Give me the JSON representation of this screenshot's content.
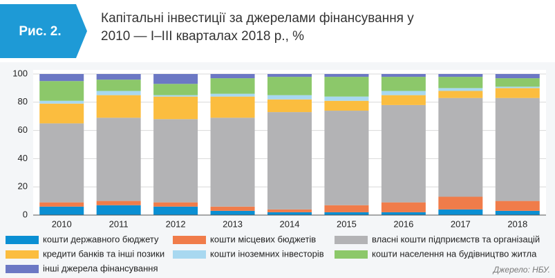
{
  "chart_data": {
    "type": "stacked_bar",
    "badge": "Рис. 2.",
    "title": "Капітальні інвестиції за джерелами фінансування у 2010 — I–III кварталах 2018 р., %",
    "source": "Джерело: НБУ.",
    "categories": [
      "2010",
      "2011",
      "2012",
      "2013",
      "2014",
      "2015",
      "2016",
      "2017",
      "2018"
    ],
    "series": [
      {
        "name": "кошти державного бюджету",
        "color": "#0a8fd3",
        "values": [
          6,
          7,
          6,
          3,
          2,
          2,
          2,
          4,
          3
        ]
      },
      {
        "name": "кошти місцевих бюджетів",
        "color": "#f07c4a",
        "values": [
          3,
          3,
          3,
          3,
          2,
          5,
          7,
          9,
          7
        ]
      },
      {
        "name": "власні кошти підприємств та організацій",
        "color": "#b3b3b5",
        "values": [
          56,
          59,
          59,
          63,
          69,
          67,
          69,
          70,
          73
        ]
      },
      {
        "name": "кредити банків та інші позики",
        "color": "#fbbd3f",
        "values": [
          14,
          16,
          16,
          15,
          9,
          7,
          7,
          5,
          7
        ]
      },
      {
        "name": "кошти іноземних інвесторів",
        "color": "#a8d8f0",
        "values": [
          2,
          3,
          1,
          2,
          3,
          3,
          3,
          2,
          1
        ]
      },
      {
        "name": "кошти населення на будівництво житла",
        "color": "#8cc86a",
        "values": [
          14,
          8,
          8,
          11,
          13,
          14,
          10,
          8,
          6
        ]
      },
      {
        "name": "інші джерела фінансування",
        "color": "#6c78c4",
        "values": [
          5,
          4,
          7,
          3,
          2,
          2,
          2,
          2,
          3
        ]
      }
    ],
    "ylim": [
      0,
      100
    ],
    "yticks": [
      0,
      20,
      40,
      60,
      80,
      100
    ],
    "grid": true
  }
}
